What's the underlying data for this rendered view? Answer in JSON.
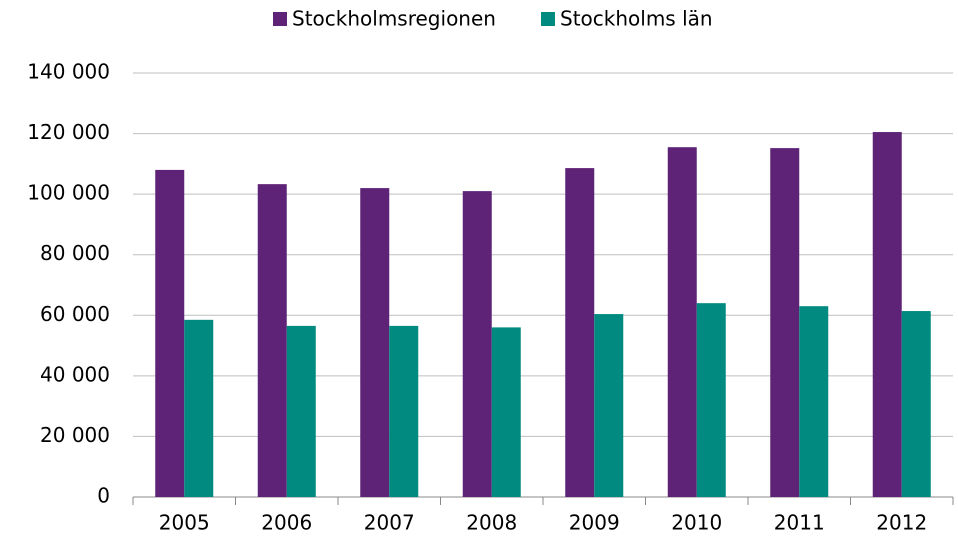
{
  "chart_data": {
    "type": "bar",
    "categories": [
      "2005",
      "2006",
      "2007",
      "2008",
      "2009",
      "2010",
      "2011",
      "2012"
    ],
    "series": [
      {
        "name": "Stockholmsregionen",
        "color": "#5e2377",
        "values": [
          108000,
          103300,
          102000,
          101000,
          108600,
          115500,
          115200,
          120500
        ]
      },
      {
        "name": "Stockholms län",
        "color": "#008a80",
        "values": [
          58500,
          56500,
          56500,
          56000,
          60400,
          64000,
          63000,
          61400
        ]
      }
    ],
    "ylim": [
      0,
      140000
    ],
    "yticks": [
      0,
      {
        "value": 20000,
        "label": "20 000"
      },
      {
        "value": 40000,
        "label": "40 000"
      },
      {
        "value": 60000,
        "label": "60 000"
      },
      {
        "value": 80000,
        "label": "80 000"
      },
      {
        "value": 100000,
        "label": "100 000"
      },
      {
        "value": 120000,
        "label": "120 000"
      },
      {
        "value": 140000,
        "label": "140 000"
      }
    ],
    "grid": true,
    "legend": "top"
  }
}
